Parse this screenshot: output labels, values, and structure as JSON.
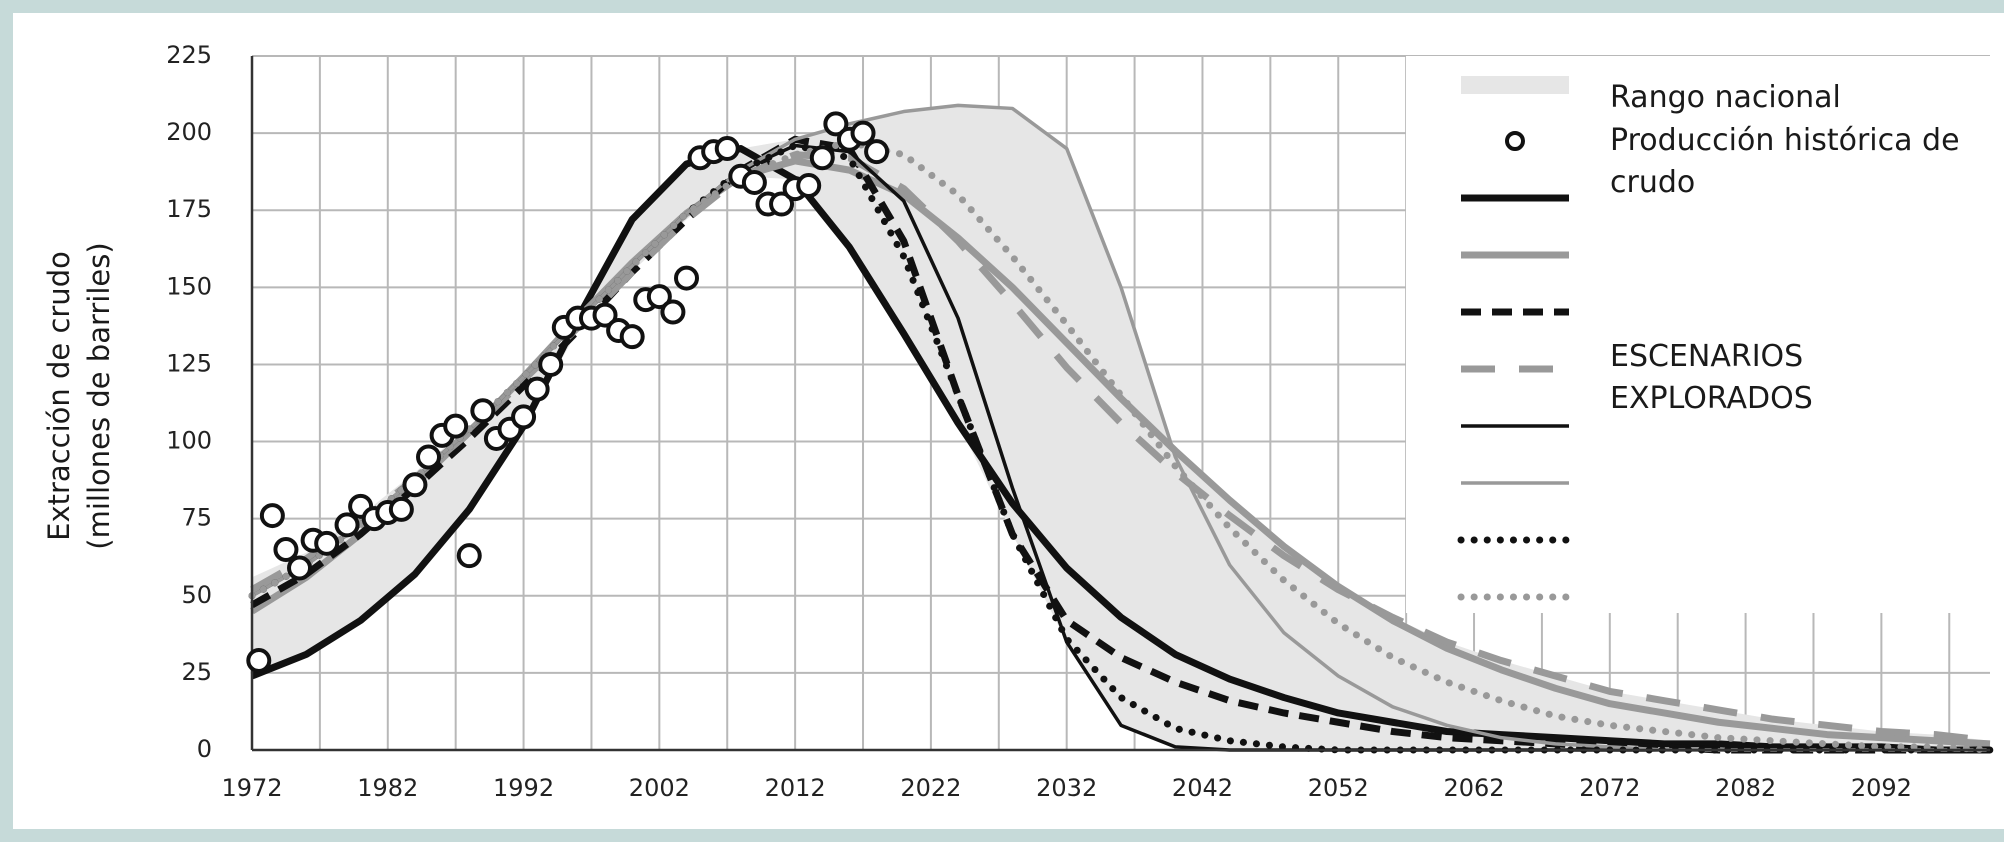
{
  "chart_data": {
    "type": "line",
    "ylabel": "Extracción de crudo (millones de barriles)",
    "xlim": [
      1972,
      2100
    ],
    "ylim": [
      0,
      225
    ],
    "xticks": [
      1972,
      1982,
      1992,
      2002,
      2012,
      2022,
      2032,
      2042,
      2052,
      2062,
      2072,
      2082,
      2092
    ],
    "yticks": [
      0,
      25,
      50,
      75,
      100,
      125,
      150,
      175,
      200,
      225
    ],
    "grid": true,
    "legend": "upper right",
    "annotation": "ESCENARIOS EXPLORADOS",
    "x": [
      1972,
      1976,
      1980,
      1984,
      1988,
      1992,
      1996,
      2000,
      2004,
      2008,
      2012,
      2016,
      2020,
      2024,
      2028,
      2032,
      2036,
      2040,
      2044,
      2048,
      2052,
      2056,
      2060,
      2064,
      2068,
      2072,
      2076,
      2080,
      2084,
      2088,
      2092,
      2096,
      2100
    ],
    "range": {
      "name": "Rango nacional",
      "color": "#e6e6e6",
      "lower": [
        24,
        31,
        42,
        57,
        78,
        105,
        136,
        155,
        172,
        186,
        185,
        163,
        135,
        106,
        70,
        35,
        8,
        1,
        0,
        0,
        0,
        0,
        0,
        0,
        0,
        0,
        0,
        0,
        0,
        0,
        0,
        0,
        0
      ],
      "upper": [
        56,
        64,
        76,
        90,
        105,
        122,
        140,
        172,
        190,
        195,
        198,
        203,
        207,
        209,
        208,
        195,
        150,
        97,
        81,
        66,
        53,
        43,
        35,
        29,
        24,
        19,
        16,
        13,
        10,
        8,
        6,
        5,
        3
      ]
    },
    "points": {
      "name": "Producción histórica de crudo",
      "color": "#111111",
      "x": [
        1972.5,
        1973.5,
        1974.5,
        1975.5,
        1976.5,
        1977.5,
        1979,
        1980,
        1981,
        1982,
        1983,
        1984,
        1985,
        1986,
        1987,
        1988,
        1989,
        1990,
        1991,
        1992,
        1993,
        1994,
        1995,
        1996,
        1997,
        1998,
        1999,
        2000,
        2001,
        2002,
        2003,
        2004,
        2005,
        2006,
        2007,
        2008,
        2009,
        2010,
        2011,
        2012,
        2013,
        2014,
        2015,
        2016,
        2017,
        2018
      ],
      "values": [
        29,
        76,
        65,
        59,
        68,
        67,
        73,
        79,
        75,
        77,
        78,
        86,
        95,
        102,
        105,
        63,
        110,
        101,
        104,
        108,
        117,
        125,
        137,
        140,
        140,
        141,
        136,
        134,
        146,
        147,
        142,
        153,
        192,
        194,
        195,
        186,
        184,
        177,
        177,
        182,
        183,
        192,
        203,
        198,
        200,
        194
      ]
    },
    "series": [
      {
        "color": "#111111",
        "width": "thick",
        "dash": "solid",
        "values": [
          24,
          31,
          42,
          57,
          78,
          105,
          140,
          172,
          190,
          195,
          185,
          163,
          135,
          106,
          80,
          59,
          43,
          31,
          23,
          17,
          12,
          9,
          6,
          5,
          4,
          3,
          2,
          2,
          1,
          1,
          1,
          0,
          0
        ]
      },
      {
        "color": "#999999",
        "width": "thick",
        "dash": "solid",
        "values": [
          45,
          56,
          70,
          86,
          103,
          121,
          140,
          158,
          174,
          186,
          191,
          188,
          180,
          166,
          150,
          132,
          114,
          97,
          81,
          66,
          53,
          42,
          33,
          26,
          20,
          15,
          12,
          9,
          7,
          5,
          4,
          3,
          2
        ]
      },
      {
        "color": "#111111",
        "width": "thick",
        "dash": "dashed",
        "values": [
          47,
          57,
          70,
          85,
          101,
          118,
          136,
          155,
          172,
          188,
          198,
          195,
          165,
          115,
          70,
          42,
          30,
          22,
          16,
          12,
          9,
          6,
          4,
          3,
          2,
          1,
          1,
          0,
          0,
          0,
          0,
          0,
          0
        ]
      },
      {
        "color": "#999999",
        "width": "thick",
        "dash": "longdash",
        "values": [
          52,
          62,
          74,
          88,
          103,
          120,
          137,
          155,
          172,
          186,
          193,
          192,
          182,
          165,
          145,
          124,
          106,
          90,
          76,
          63,
          52,
          43,
          35,
          29,
          24,
          19,
          16,
          13,
          10,
          8,
          6,
          5,
          3
        ]
      },
      {
        "color": "#111111",
        "width": "thin",
        "dash": "solid",
        "values": [
          50,
          60,
          73,
          88,
          104,
          121,
          139,
          157,
          174,
          188,
          196,
          194,
          178,
          140,
          85,
          35,
          8,
          1,
          0,
          0,
          0,
          0,
          0,
          0,
          0,
          0,
          0,
          0,
          0,
          0,
          0,
          0,
          0
        ]
      },
      {
        "color": "#999999",
        "width": "thin",
        "dash": "solid",
        "values": [
          50,
          60,
          73,
          88,
          104,
          121,
          139,
          157,
          174,
          188,
          198,
          203,
          207,
          209,
          208,
          195,
          150,
          95,
          60,
          38,
          24,
          14,
          8,
          4,
          2,
          1,
          0,
          0,
          0,
          0,
          0,
          0,
          0
        ]
      },
      {
        "color": "#111111",
        "width": "thick",
        "dash": "dotted",
        "values": [
          50,
          60,
          73,
          88,
          104,
          121,
          139,
          157,
          174,
          188,
          196,
          192,
          160,
          115,
          70,
          36,
          17,
          7,
          3,
          1,
          0,
          0,
          0,
          0,
          0,
          0,
          0,
          0,
          0,
          0,
          0,
          0,
          0
        ]
      },
      {
        "color": "#999999",
        "width": "thick",
        "dash": "dotted",
        "values": [
          50,
          60,
          73,
          88,
          104,
          121,
          139,
          157,
          174,
          186,
          193,
          197,
          193,
          180,
          160,
          138,
          115,
          92,
          72,
          55,
          41,
          30,
          22,
          16,
          11,
          8,
          6,
          4,
          3,
          2,
          1,
          1,
          0
        ]
      }
    ]
  }
}
